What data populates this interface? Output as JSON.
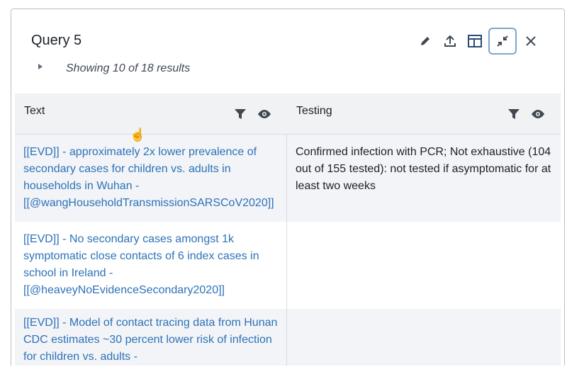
{
  "panel": {
    "title": "Query 5",
    "summary": "Showing 10 of 18 results",
    "toolbar": [
      "edit-icon",
      "export-icon",
      "layout-icon",
      "minimize-icon",
      "close-icon"
    ]
  },
  "table": {
    "columns": [
      {
        "label": "Text"
      },
      {
        "label": "Testing"
      }
    ],
    "rows": [
      {
        "text": "[[EVD]] - approximately 2x lower prevalence of secondary cases for children vs. adults in households in Wuhan - [[@wangHouseholdTransmissionSARSCoV2020]]",
        "testing": "Confirmed infection with PCR; Not exhaustive (104 out of 155 tested): not tested if asymptomatic for at least two weeks"
      },
      {
        "text": "[[EVD]] - No secondary cases amongst 1k symptomatic close contacts of 6 index cases in school in Ireland - [[@heaveyNoEvidenceSecondary2020]]",
        "testing": ""
      },
      {
        "text": "[[EVD]] - Model of contact tracing data from Hunan CDC estimates ~30 percent lower risk of infection for children vs. adults -",
        "testing": ""
      }
    ]
  },
  "colors": {
    "link": "#2d72b8",
    "active_border": "#7ea6cf",
    "row_alt": "#f2f4f7"
  }
}
